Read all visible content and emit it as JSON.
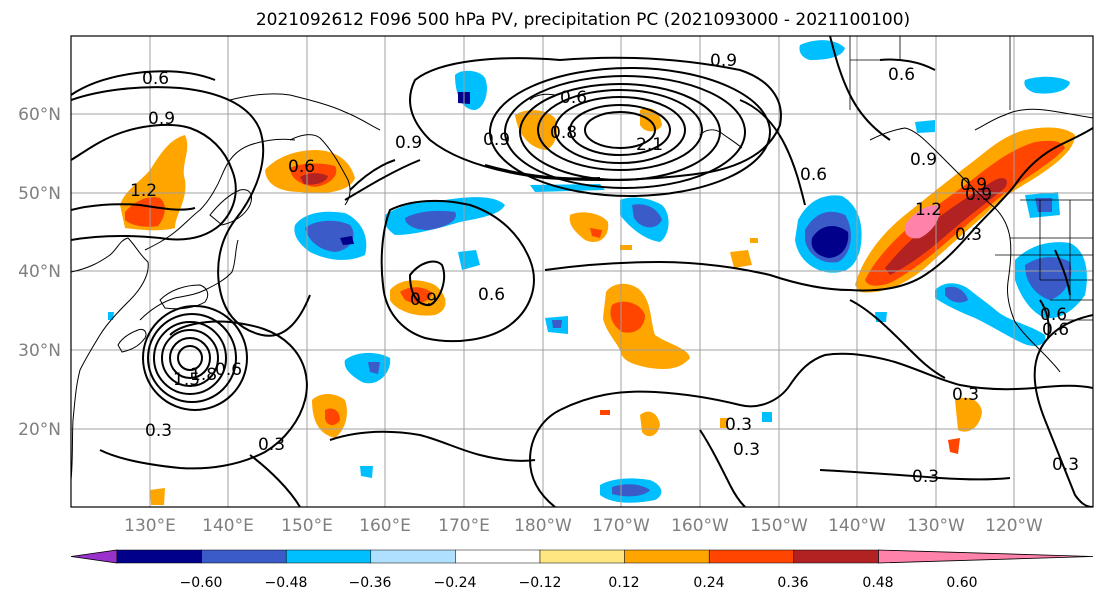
{
  "title": "2021092612 F096 500 hPa PV, precipitation PC (2021093000 - 2021100100)",
  "lat_labels": [
    "60°N",
    "50°N",
    "40°N",
    "30°N",
    "20°N"
  ],
  "lon_labels": [
    "130°E",
    "140°E",
    "150°E",
    "160°E",
    "170°E",
    "180°W",
    "170°W",
    "160°W",
    "150°W",
    "140°W",
    "130°W",
    "120°W"
  ],
  "colorbar": {
    "colors": [
      "#9932cc",
      "#00008b",
      "#3a5bc8",
      "#00bfff",
      "#b0e0ff",
      "#ffffff",
      "#ffe680",
      "#ffa500",
      "#ff4500",
      "#b22222",
      "#ff82ab"
    ],
    "tick_labels": [
      "−0.60",
      "−0.48",
      "−0.36",
      "−0.24",
      "−0.12",
      "0.12",
      "0.24",
      "0.36",
      "0.48",
      "0.60"
    ]
  },
  "contour_labels": [
    "0.6",
    "0.9",
    "0.9",
    "0.6",
    "0.9",
    "0.8",
    "2.1",
    "0.6",
    "0.9",
    "0.6",
    "0.9",
    "1.2",
    "0.6",
    "0.9",
    "0.9",
    "0.6",
    "1.2",
    "1.5",
    "0.3",
    "0.3",
    "0.3",
    "0.3",
    "0.6",
    "0.3",
    "0.3",
    "0.3",
    "0.6",
    "0.9",
    "0.3",
    "1.8",
    "0.6"
  ]
}
